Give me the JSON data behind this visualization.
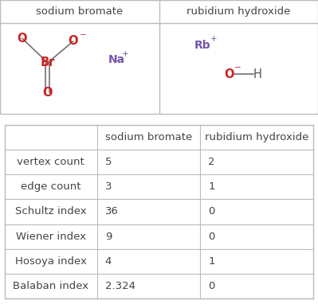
{
  "col1_header": "sodium bromate",
  "col2_header": "rubidium hydroxide",
  "rows": [
    {
      "label": "vertex count",
      "val1": "5",
      "val2": "2"
    },
    {
      "label": "edge count",
      "val1": "3",
      "val2": "1"
    },
    {
      "label": "Schultz index",
      "val1": "36",
      "val2": "0"
    },
    {
      "label": "Wiener index",
      "val1": "9",
      "val2": "0"
    },
    {
      "label": "Hosoya index",
      "val1": "4",
      "val2": "1"
    },
    {
      "label": "Balaban index",
      "val1": "2.324",
      "val2": "0"
    }
  ],
  "bg_color": "#ffffff",
  "border_color": "#bbbbbb",
  "text_color": "#444444",
  "header_color": "#444444",
  "atom_red": "#cc2222",
  "atom_purple": "#7755aa",
  "bond_color": "#666666",
  "h_color": "#555555",
  "font_size_header": 9.5,
  "font_size_cell": 9.5,
  "font_size_atom": 10.5,
  "font_size_small": 7.5
}
